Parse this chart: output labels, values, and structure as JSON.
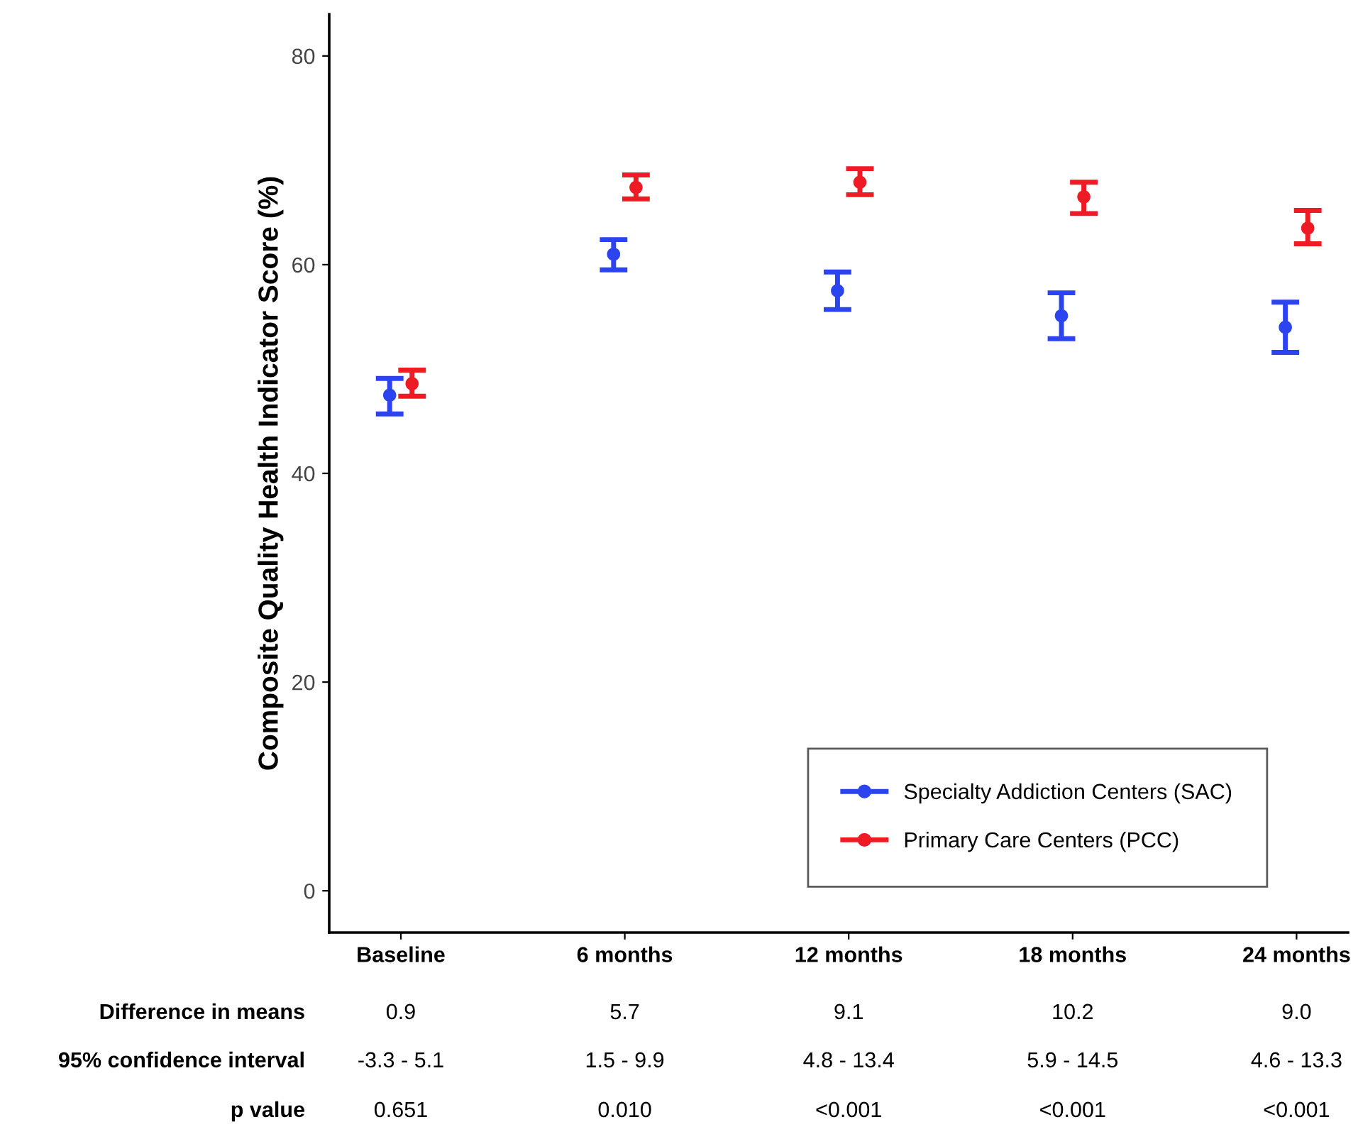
{
  "chart_data": {
    "type": "scatter",
    "ylabel": "Composite Quality Health Indicator Score (%)",
    "categories": [
      "Baseline",
      "6 months",
      "12 months",
      "18 months",
      "24 months"
    ],
    "series": [
      {
        "name": "Specialty Addiction Centers (SAC)",
        "color": "#2b44f0",
        "values": [
          47.5,
          61.0,
          57.5,
          55.1,
          54.0
        ],
        "errors": [
          [
            45.7,
            49.1
          ],
          [
            59.5,
            62.4
          ],
          [
            55.7,
            59.3
          ],
          [
            52.9,
            57.3
          ],
          [
            51.6,
            56.4
          ]
        ]
      },
      {
        "name": "Primary Care Centers (PCC)",
        "color": "#ee1b24",
        "values": [
          48.6,
          67.4,
          67.9,
          66.5,
          63.5
        ],
        "errors": [
          [
            47.4,
            49.9
          ],
          [
            66.3,
            68.6
          ],
          [
            66.7,
            69.2
          ],
          [
            64.9,
            67.9
          ],
          [
            62.0,
            65.2
          ]
        ]
      }
    ],
    "ylim": [
      -4,
      84
    ],
    "yticks": [
      0,
      20,
      40,
      60,
      80
    ],
    "grid": false,
    "legend": "bottom right",
    "marker": "circle",
    "annotations": [
      "Difference in means",
      "0.9",
      "5.7",
      "9.1",
      "10.2",
      "9.0",
      "95% confidence interval",
      "-3.3 - 5.1",
      "1.5 - 9.9",
      "4.8 - 13.4",
      "5.9 - 14.5",
      "4.6 - 13.3",
      "p value",
      "0.651",
      "0.010",
      "<0.001",
      "<0.001",
      "<0.001"
    ]
  }
}
